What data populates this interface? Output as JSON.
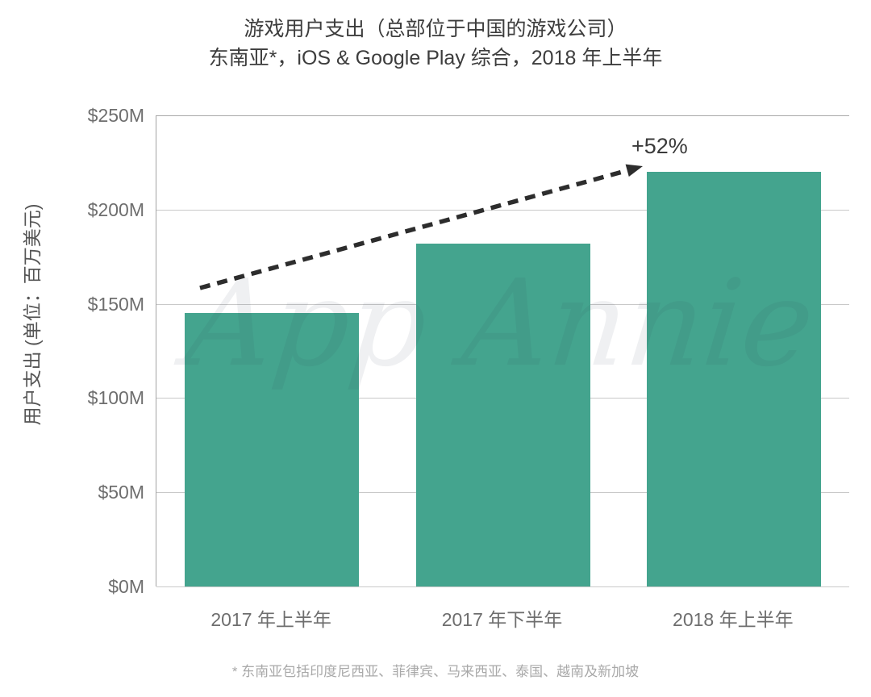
{
  "title": {
    "line1": "游戏用户支出（总部位于中国的游戏公司）",
    "line2": "东南亚*，iOS & Google Play 综合，2018 年上半年"
  },
  "watermark": "App Annie",
  "annotation": {
    "growth_label": "+52%"
  },
  "footnote": "* 东南亚包括印度尼西亚、菲律宾、马来西亚、泰国、越南及新加坡",
  "chart_data": {
    "type": "bar",
    "title": "游戏用户支出（总部位于中国的游戏公司）东南亚*，iOS & Google Play 综合，2018 年上半年",
    "categories": [
      "2017 年上半年",
      "2017 年下半年",
      "2018 年上半年"
    ],
    "values": [
      145,
      182,
      220
    ],
    "unit": "USD millions",
    "ylabel": "用户支出 (单位：百万美元)",
    "xlabel": "",
    "yticks": [
      "$250M",
      "$200M",
      "$150M",
      "$100M",
      "$50M",
      "$0M"
    ],
    "ylim": [
      0,
      250
    ],
    "grid": true,
    "legend": "none",
    "annotation": "+52% growth from 2017 H1 to 2018 H1, shown with dashed arrow",
    "bar_color": "#44a48e"
  },
  "colors": {
    "bar": "#44a48e",
    "arrow": "#2d2d2d",
    "gridline": "#c9c9c9",
    "axis_line": "#a3a3a3",
    "title_text": "#3d3d3d",
    "tick_text": "#6e6e6e",
    "footnote_text": "#a9a9a9",
    "background": "#ffffff"
  }
}
